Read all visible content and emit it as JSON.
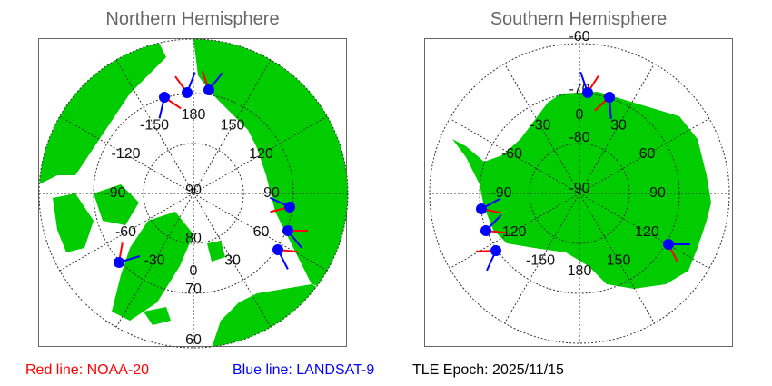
{
  "north": {
    "title": "Northern Hemisphere",
    "lon_labels": [
      "180",
      "150",
      "120",
      "90",
      "60",
      "30",
      "0",
      "-30",
      "-60",
      "-90",
      "-120",
      "-150"
    ],
    "lat_labels": [
      "90",
      "80",
      "70",
      "60"
    ]
  },
  "south": {
    "title": "Southern Hemisphere",
    "lon_labels": [
      "0",
      "30",
      "60",
      "90",
      "120",
      "150",
      "180",
      "-150",
      "-120",
      "-90",
      "-60",
      "-30"
    ],
    "lat_labels": [
      "-90",
      "-80",
      "-70",
      "-60"
    ]
  },
  "legend": {
    "red": "Red line: NOAA-20",
    "blue": "Blue line: LANDSAT-9",
    "epoch": "TLE Epoch: 2025/11/15"
  },
  "colors": {
    "land": "#00cc00",
    "noaa20": "#ff0000",
    "landsat9": "#0000ff",
    "grid": "#333333"
  }
}
